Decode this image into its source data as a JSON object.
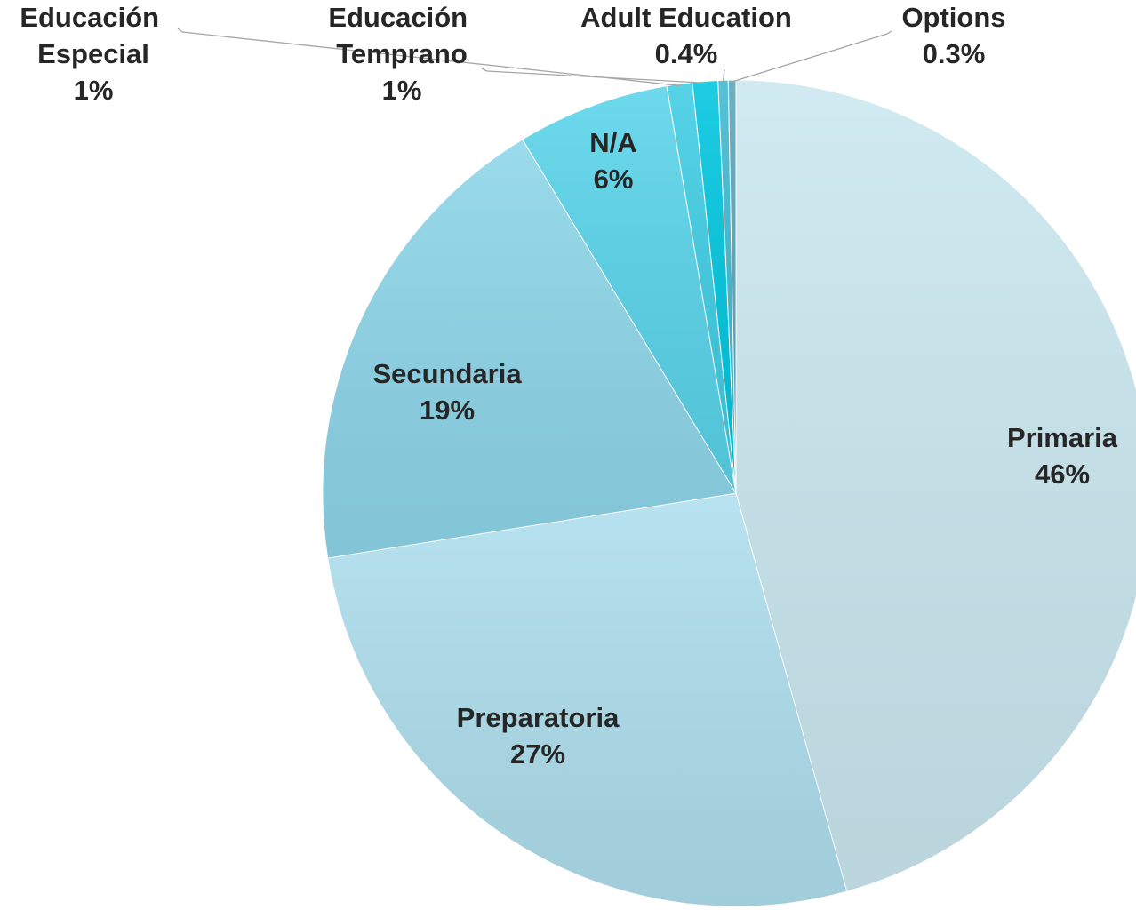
{
  "chart_data": {
    "type": "pie",
    "categories": [
      "Primaria",
      "Preparatoria",
      "Secundaria",
      "N/A",
      "Educación Especial",
      "Educación Temprano",
      "Adult Education",
      "Options"
    ],
    "values": [
      46,
      27,
      19,
      6,
      1,
      1,
      0.4,
      0.3
    ],
    "value_labels": [
      "46%",
      "27%",
      "19%",
      "6%",
      "1%",
      "1%",
      "0.4%",
      "0.3%"
    ],
    "colors": [
      "#cbe8f1",
      "#afdfee",
      "#8dd6e9",
      "#59d4ea",
      "#3fcde4",
      "#00c6df",
      "#40b9d1",
      "#5da5b9"
    ]
  }
}
